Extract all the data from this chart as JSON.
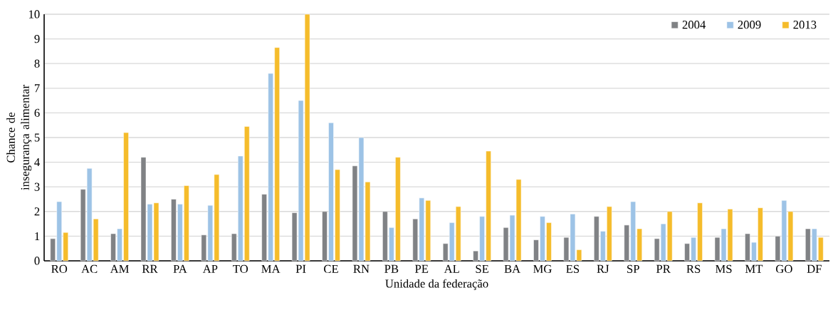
{
  "chart_data": {
    "type": "bar",
    "xlabel": "Unidade da federação",
    "ylabel": "Chance de insegurança alimentar",
    "categories": [
      "RO",
      "AC",
      "AM",
      "RR",
      "PA",
      "AP",
      "TO",
      "MA",
      "PI",
      "CE",
      "RN",
      "PB",
      "PE",
      "AL",
      "SE",
      "BA",
      "MG",
      "ES",
      "RJ",
      "SP",
      "PR",
      "RS",
      "MS",
      "MT",
      "GO",
      "DF"
    ],
    "series": [
      {
        "name": "2004",
        "color": "#808285",
        "values": [
          0.9,
          2.9,
          1.1,
          4.2,
          2.5,
          1.05,
          1.1,
          2.7,
          1.95,
          2.0,
          3.85,
          2.0,
          1.7,
          0.7,
          0.4,
          1.35,
          0.85,
          0.95,
          1.8,
          1.45,
          0.9,
          0.7,
          0.95,
          1.1,
          1.0,
          1.3
        ]
      },
      {
        "name": "2009",
        "color": "#9dc3e6",
        "values": [
          2.4,
          3.75,
          1.3,
          2.3,
          2.3,
          2.25,
          4.25,
          7.6,
          6.5,
          5.6,
          5.0,
          1.35,
          2.55,
          1.55,
          1.8,
          1.85,
          1.8,
          1.9,
          1.2,
          2.4,
          1.5,
          0.95,
          1.3,
          0.75,
          2.45,
          1.3
        ]
      },
      {
        "name": "2013",
        "color": "#f5bc2b",
        "values": [
          1.15,
          1.7,
          5.2,
          2.35,
          3.05,
          3.5,
          5.45,
          8.65,
          10,
          3.7,
          3.2,
          4.2,
          2.45,
          2.2,
          4.45,
          3.3,
          1.55,
          0.45,
          2.2,
          1.3,
          2.0,
          2.35,
          2.1,
          2.15,
          2.0,
          0.95
        ]
      }
    ],
    "ylim": [
      0,
      10
    ],
    "yticks": [
      0,
      1,
      2,
      3,
      4,
      5,
      6,
      7,
      8,
      9,
      10
    ],
    "grid": "y",
    "legend": "top right"
  }
}
